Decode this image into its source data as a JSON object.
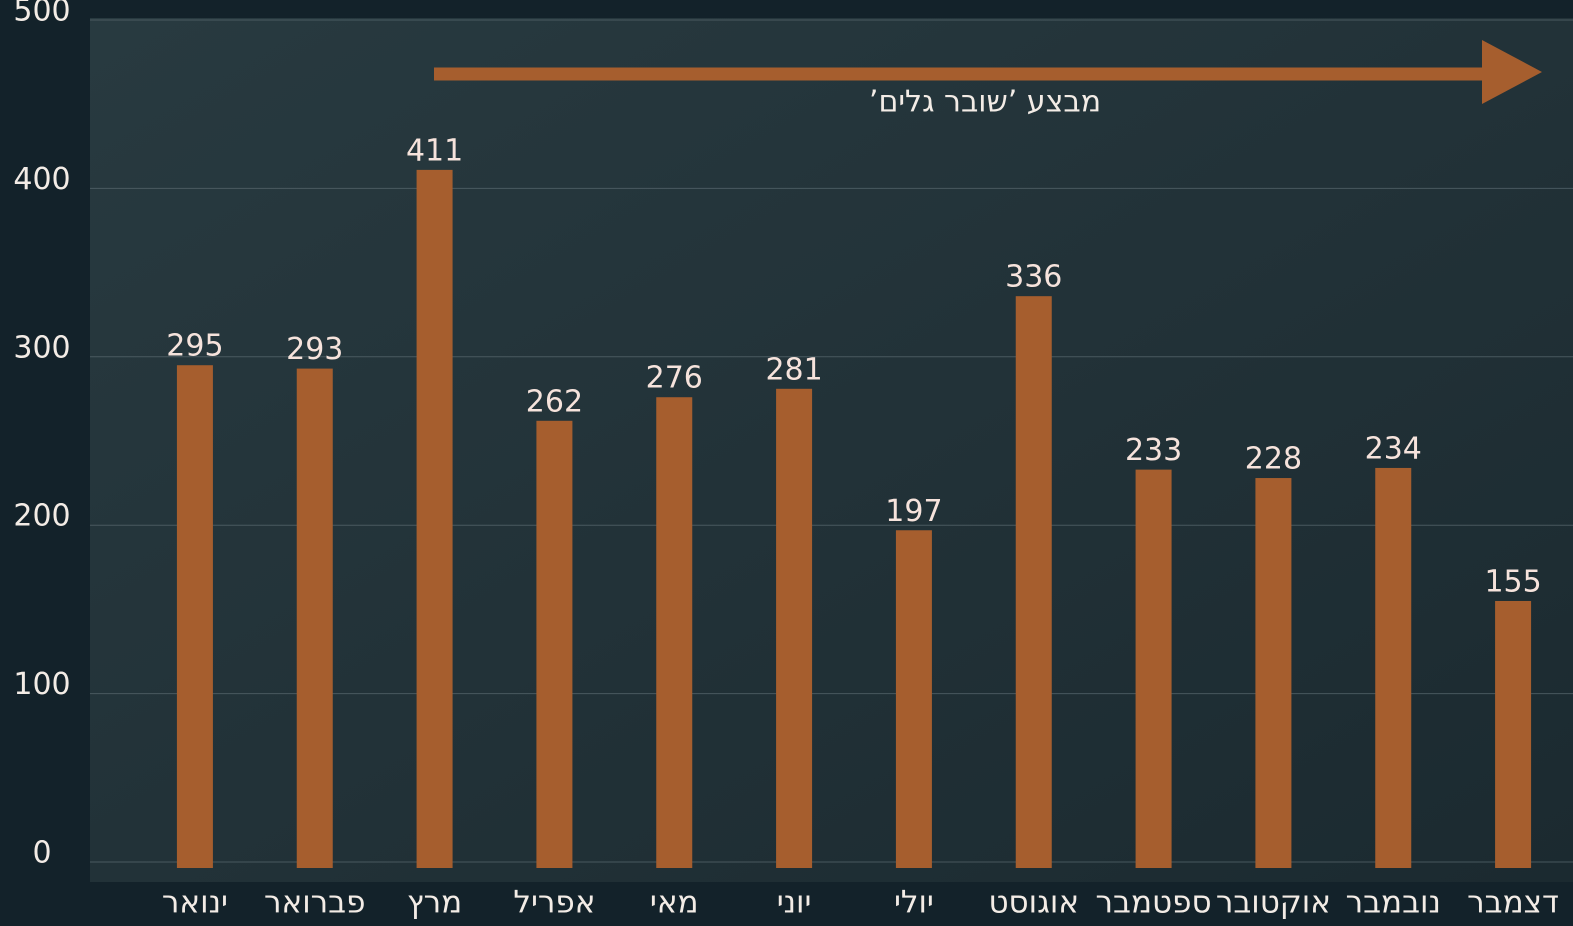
{
  "chart_data": {
    "type": "bar",
    "categories": [
      "ינואר",
      "פברואר",
      "מרץ",
      "אפריל",
      "מאי",
      "יוני",
      "יולי",
      "אוגוסט",
      "ספטמבר",
      "אוקטובר",
      "נובמבר",
      "דצמבר"
    ],
    "values": [
      295,
      293,
      411,
      262,
      276,
      281,
      197,
      336,
      233,
      228,
      234,
      155
    ],
    "color": "#a65e2e",
    "ylim": [
      0,
      500
    ],
    "yticks": [
      0,
      100,
      200,
      300,
      400,
      500
    ],
    "grid": true,
    "annotation": "מבצע ’שובר גלים’"
  }
}
